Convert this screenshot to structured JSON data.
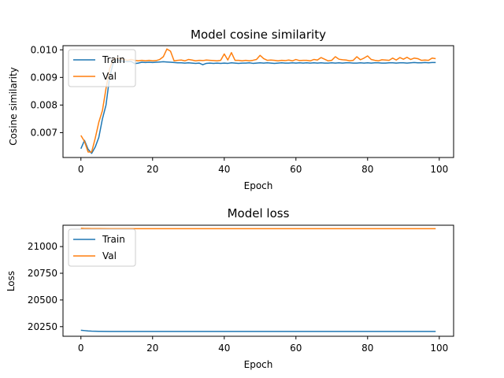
{
  "colors": {
    "train": "#1f77b4",
    "val": "#ff7f0e"
  },
  "chart_data": [
    {
      "type": "line",
      "title": "Model cosine similarity",
      "xlabel": "Epoch",
      "ylabel": "Cosine similarity",
      "xlim": [
        -5,
        104
      ],
      "ylim": [
        0.0061,
        0.01015
      ],
      "xticks": [
        0,
        20,
        40,
        60,
        80,
        100
      ],
      "xtick_labels": [
        "0",
        "20",
        "40",
        "60",
        "80",
        "100"
      ],
      "yticks": [
        0.007,
        0.008,
        0.009,
        0.01
      ],
      "ytick_labels": [
        "0.007",
        "0.008",
        "0.009",
        "0.010"
      ],
      "legend": {
        "placement": "upper-left",
        "entries": [
          "Train",
          "Val"
        ]
      },
      "grid": false,
      "series": [
        {
          "name": "Train",
          "color_key": "train",
          "x": [
            0,
            1,
            2,
            3,
            4,
            5,
            6,
            7,
            8,
            9,
            10,
            11,
            12,
            13,
            14,
            15,
            16,
            17,
            18,
            19,
            20,
            21,
            22,
            23,
            24,
            25,
            26,
            27,
            28,
            29,
            30,
            31,
            32,
            33,
            34,
            35,
            36,
            37,
            38,
            39,
            40,
            41,
            42,
            43,
            44,
            45,
            46,
            47,
            48,
            49,
            50,
            51,
            52,
            53,
            54,
            55,
            56,
            57,
            58,
            59,
            60,
            61,
            62,
            63,
            64,
            65,
            66,
            67,
            68,
            69,
            70,
            71,
            72,
            73,
            74,
            75,
            76,
            77,
            78,
            79,
            80,
            81,
            82,
            83,
            84,
            85,
            86,
            87,
            88,
            89,
            90,
            91,
            92,
            93,
            94,
            95,
            96,
            97,
            98,
            99
          ],
          "y": [
            0.00642,
            0.00672,
            0.0064,
            0.00625,
            0.00648,
            0.00683,
            0.0075,
            0.008,
            0.009,
            0.00952,
            0.00965,
            0.0096,
            0.00958,
            0.00957,
            0.00958,
            0.0095,
            0.00952,
            0.00955,
            0.00954,
            0.00955,
            0.00954,
            0.00955,
            0.00956,
            0.00957,
            0.00956,
            0.00955,
            0.00954,
            0.00953,
            0.00953,
            0.00952,
            0.00953,
            0.00952,
            0.00951,
            0.00952,
            0.00946,
            0.00951,
            0.00952,
            0.00951,
            0.00952,
            0.00951,
            0.00952,
            0.00951,
            0.00953,
            0.00952,
            0.00951,
            0.00952,
            0.00952,
            0.00953,
            0.00951,
            0.00952,
            0.00953,
            0.00952,
            0.00953,
            0.00952,
            0.00951,
            0.00952,
            0.00953,
            0.00952,
            0.00952,
            0.00953,
            0.00952,
            0.00953,
            0.00952,
            0.00953,
            0.00952,
            0.00953,
            0.00952,
            0.00953,
            0.00952,
            0.00952,
            0.00953,
            0.00952,
            0.00953,
            0.00952,
            0.00953,
            0.00953,
            0.00952,
            0.00952,
            0.00953,
            0.00952,
            0.00953,
            0.00952,
            0.00953,
            0.00953,
            0.00952,
            0.00952,
            0.00953,
            0.00953,
            0.00952,
            0.00953,
            0.00953,
            0.00952,
            0.00953,
            0.00954,
            0.00953,
            0.00953,
            0.00954,
            0.00953,
            0.00954,
            0.00954
          ]
        },
        {
          "name": "Val",
          "color_key": "val",
          "x": [
            0,
            1,
            2,
            3,
            4,
            5,
            6,
            7,
            8,
            9,
            10,
            11,
            12,
            13,
            14,
            15,
            16,
            17,
            18,
            19,
            20,
            21,
            22,
            23,
            24,
            25,
            26,
            27,
            28,
            29,
            30,
            31,
            32,
            33,
            34,
            35,
            36,
            37,
            38,
            39,
            40,
            41,
            42,
            43,
            44,
            45,
            46,
            47,
            48,
            49,
            50,
            51,
            52,
            53,
            54,
            55,
            56,
            57,
            58,
            59,
            60,
            61,
            62,
            63,
            64,
            65,
            66,
            67,
            68,
            69,
            70,
            71,
            72,
            73,
            74,
            75,
            76,
            77,
            78,
            79,
            80,
            81,
            82,
            83,
            84,
            85,
            86,
            87,
            88,
            89,
            90,
            91,
            92,
            93,
            94,
            95,
            96,
            97,
            98,
            99
          ],
          "y": [
            0.0069,
            0.00668,
            0.0063,
            0.0063,
            0.0068,
            0.00738,
            0.0078,
            0.0086,
            0.0093,
            0.00965,
            0.0097,
            0.00968,
            0.00965,
            0.00962,
            0.00965,
            0.00962,
            0.0096,
            0.00962,
            0.0096,
            0.00962,
            0.0096,
            0.00961,
            0.00965,
            0.00975,
            0.01003,
            0.00995,
            0.0096,
            0.00962,
            0.00963,
            0.0096,
            0.00965,
            0.00963,
            0.0096,
            0.00962,
            0.00961,
            0.00963,
            0.00962,
            0.00961,
            0.0096,
            0.00962,
            0.00985,
            0.00963,
            0.0099,
            0.00962,
            0.00962,
            0.0096,
            0.00962,
            0.0096,
            0.00962,
            0.00965,
            0.0098,
            0.00968,
            0.00962,
            0.00963,
            0.00962,
            0.0096,
            0.00962,
            0.00961,
            0.00963,
            0.0096,
            0.00965,
            0.00961,
            0.00962,
            0.00962,
            0.0096,
            0.00965,
            0.00963,
            0.00972,
            0.00966,
            0.0096,
            0.00962,
            0.00975,
            0.00966,
            0.00964,
            0.00963,
            0.0096,
            0.00962,
            0.00975,
            0.00964,
            0.0097,
            0.00978,
            0.00965,
            0.00962,
            0.0096,
            0.00964,
            0.00963,
            0.00962,
            0.0097,
            0.00963,
            0.00972,
            0.00966,
            0.00973,
            0.00965,
            0.0097,
            0.00968,
            0.00962,
            0.00963,
            0.00962,
            0.0097,
            0.00968
          ]
        }
      ]
    },
    {
      "type": "line",
      "title": "Model loss",
      "xlabel": "Epoch",
      "ylabel": "Loss",
      "xlim": [
        -5,
        104
      ],
      "ylim": [
        20160,
        21200
      ],
      "xticks": [
        0,
        20,
        40,
        60,
        80,
        100
      ],
      "xtick_labels": [
        "0",
        "20",
        "40",
        "60",
        "80",
        "100"
      ],
      "yticks": [
        20250,
        20500,
        20750,
        21000
      ],
      "ytick_labels": [
        "20250",
        "20500",
        "20750",
        "21000"
      ],
      "legend": {
        "placement": "upper-left",
        "entries": [
          "Train",
          "Val"
        ]
      },
      "grid": false,
      "series": [
        {
          "name": "Train",
          "color_key": "train",
          "x": [
            0,
            1,
            2,
            3,
            5,
            8,
            10,
            15,
            20,
            30,
            40,
            50,
            60,
            70,
            80,
            90,
            99
          ],
          "y": [
            20216,
            20213,
            20210,
            20208,
            20206,
            20205,
            20205,
            20205,
            20205,
            20205,
            20205,
            20205,
            20205,
            20205,
            20205,
            20205,
            20205
          ]
        },
        {
          "name": "Val",
          "color_key": "val",
          "x": [
            0,
            1,
            2,
            3,
            5,
            8,
            10,
            15,
            20,
            30,
            40,
            50,
            60,
            70,
            80,
            90,
            99
          ],
          "y": [
            21172,
            21170,
            21170,
            21169,
            21169,
            21168,
            21168,
            21168,
            21168,
            21168,
            21168,
            21168,
            21168,
            21168,
            21168,
            21168,
            21168
          ]
        }
      ]
    }
  ]
}
